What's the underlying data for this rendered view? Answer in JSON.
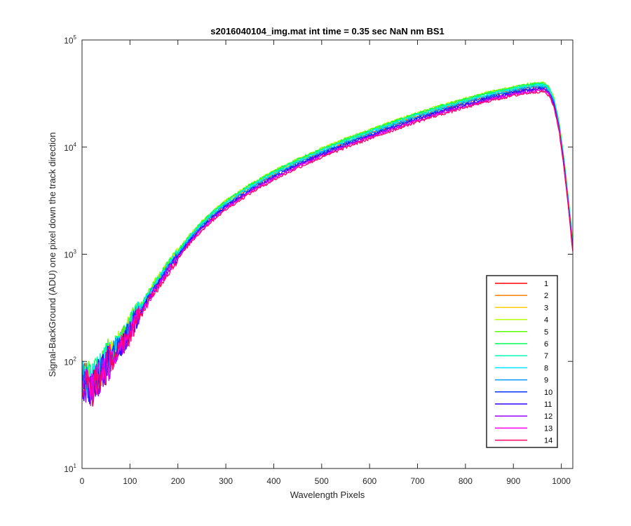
{
  "chart_data": {
    "type": "line",
    "title": "s2016040104_img.mat int time = 0.35 sec  NaN nm BS1",
    "xlabel": "Wavelength Pixels",
    "ylabel": "Signal-BackGround (ADU) one pixel down the track direction",
    "xlim": [
      0,
      1024
    ],
    "ylim": [
      10,
      100000
    ],
    "yscale": "log",
    "grid": false,
    "legend_position": "bottom-right",
    "x_ticks": [
      0,
      100,
      200,
      300,
      400,
      500,
      600,
      700,
      800,
      900,
      1000
    ],
    "y_ticks": [
      {
        "value": 10,
        "base": "10",
        "exp": "1"
      },
      {
        "value": 100,
        "base": "10",
        "exp": "2"
      },
      {
        "value": 1000,
        "base": "10",
        "exp": "3"
      },
      {
        "value": 10000,
        "base": "10",
        "exp": "4"
      },
      {
        "value": 100000,
        "base": "10",
        "exp": "5"
      }
    ],
    "profile": {
      "x": [
        0,
        10,
        20,
        30,
        50,
        70,
        90,
        110,
        130,
        150,
        175,
        200,
        225,
        250,
        275,
        300,
        350,
        400,
        450,
        500,
        550,
        600,
        650,
        700,
        750,
        800,
        850,
        900,
        930,
        950,
        965,
        975,
        985,
        995,
        1005,
        1015,
        1024
      ],
      "y": [
        65,
        65,
        60,
        70,
        95,
        130,
        165,
        250,
        340,
        480,
        700,
        1000,
        1400,
        1850,
        2350,
        2900,
        4100,
        5500,
        7100,
        8900,
        11000,
        13300,
        16000,
        19200,
        22500,
        26000,
        30000,
        33500,
        35500,
        36500,
        36500,
        33000,
        26000,
        16000,
        7500,
        3000,
        1150
      ]
    },
    "series": [
      {
        "name": "1",
        "color": "#ff0000",
        "scale": 1.0
      },
      {
        "name": "2",
        "color": "#ff7f00",
        "scale": 1.02
      },
      {
        "name": "3",
        "color": "#ffcc00",
        "scale": 1.06
      },
      {
        "name": "4",
        "color": "#b4ff00",
        "scale": 1.09
      },
      {
        "name": "5",
        "color": "#55ff00",
        "scale": 1.08
      },
      {
        "name": "6",
        "color": "#00ff55",
        "scale": 1.07
      },
      {
        "name": "7",
        "color": "#00ffb4",
        "scale": 1.05
      },
      {
        "name": "8",
        "color": "#00e5ff",
        "scale": 1.03
      },
      {
        "name": "9",
        "color": "#0099ff",
        "scale": 1.0
      },
      {
        "name": "10",
        "color": "#0033ff",
        "scale": 0.97
      },
      {
        "name": "11",
        "color": "#3300ff",
        "scale": 0.95
      },
      {
        "name": "12",
        "color": "#9900ff",
        "scale": 0.94
      },
      {
        "name": "13",
        "color": "#ff00ee",
        "scale": 0.92
      },
      {
        "name": "14",
        "color": "#ff0066",
        "scale": 0.9
      }
    ]
  }
}
